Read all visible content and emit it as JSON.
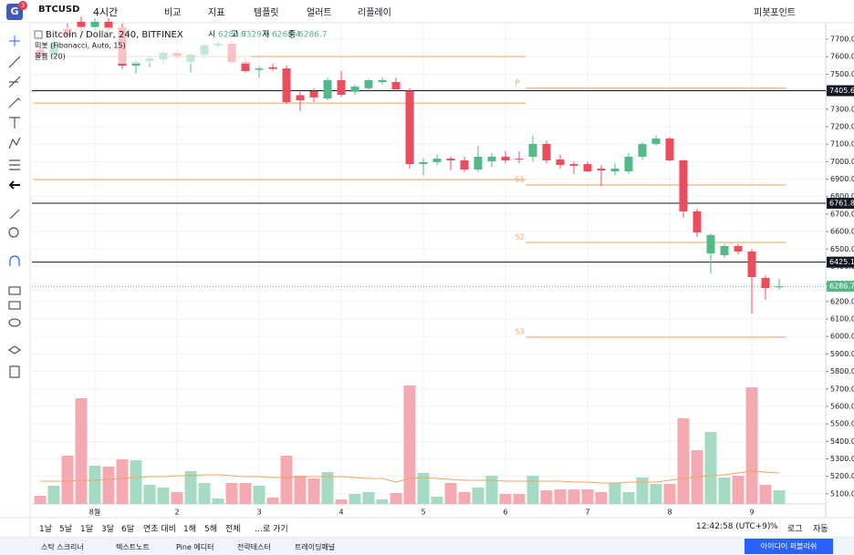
{
  "toolbar": {
    "badge": "3",
    "symbol": "BTCUSD",
    "interval": "4시간",
    "items": [
      "비교",
      "지표",
      "템플릿",
      "얼러트",
      "리플레이"
    ],
    "pivot": "피봇포인트"
  },
  "chart_data": {
    "type": "candlestick",
    "title": "Bitcoin / Dollar, 240, BITFINEX",
    "ohlc_labels": [
      "시",
      "고",
      "저",
      "종"
    ],
    "indicator": "피봇 (Fibonacci, Auto, 15)",
    "categories": [
      null,
      null,
      null,
      null,
      "8월",
      null,
      null,
      null,
      null,
      null,
      "2",
      null,
      null,
      null,
      null,
      null,
      "3",
      null,
      null,
      null,
      null,
      null,
      "4",
      null,
      null,
      null,
      null,
      null,
      "5",
      null,
      null,
      null,
      null,
      null,
      "6",
      null,
      null,
      null,
      null,
      null,
      "7",
      null,
      null,
      null,
      null,
      null,
      "8",
      null,
      null,
      null,
      null,
      null,
      "9",
      null,
      null
    ],
    "open": [
      7640,
      7610,
      7760,
      7800,
      7770,
      7800,
      7768,
      7549,
      7575,
      7585,
      7620,
      7570,
      7611,
      7664,
      7674,
      7570,
      7525,
      7540,
      7533,
      7380,
      7403,
      7361,
      7466,
      7400,
      7420,
      7455,
      7455,
      7405,
      6986,
      6997,
      7017,
      7007,
      6955,
      7002,
      7028,
      7017,
      7028,
      7101,
      7012,
      6986,
      6986,
      6960,
      6944,
      6944,
      7028,
      7101,
      7132,
      7007,
      6715,
      6475,
      6465,
      6517,
      6486,
      6335,
      6280.7
    ],
    "high": [
      7680,
      7700,
      7790,
      7830,
      7820,
      7820,
      7790,
      7580,
      7600,
      7640,
      7640,
      7620,
      7680,
      7690,
      7690,
      7590,
      7545,
      7560,
      7550,
      7400,
      7420,
      7480,
      7520,
      7440,
      7470,
      7480,
      7480,
      7420,
      7020,
      7040,
      7030,
      7030,
      7090,
      7050,
      7060,
      7060,
      7150,
      7120,
      7040,
      7000,
      7000,
      6980,
      6990,
      7050,
      7110,
      7150,
      7140,
      7010,
      6730,
      6590,
      6530,
      6530,
      6500,
      6350,
      6329.9
    ],
    "low": [
      7600,
      7590,
      7700,
      7720,
      7740,
      7740,
      7530,
      7505,
      7540,
      7560,
      7590,
      7510,
      7590,
      7650,
      7560,
      7510,
      7480,
      7520,
      7330,
      7290,
      7340,
      7350,
      7370,
      7380,
      7400,
      7440,
      7400,
      6960,
      6920,
      6980,
      6950,
      6940,
      6940,
      6970,
      6990,
      6990,
      7000,
      6990,
      6960,
      6930,
      6940,
      6860,
      6920,
      6930,
      7010,
      7090,
      7000,
      6680,
      6570,
      6360,
      6450,
      6470,
      6130,
      6210,
      6268.4
    ],
    "close": [
      7610,
      7680,
      7720,
      7770,
      7800,
      7760,
      7549,
      7570,
      7590,
      7622,
      7605,
      7611,
      7664,
      7674,
      7570,
      7518,
      7533,
      7530,
      7340,
      7351,
      7367,
      7466,
      7382,
      7429,
      7466,
      7466,
      7413,
      6986,
      6997,
      7017,
      7007,
      6955,
      7028,
      7028,
      7007,
      7012,
      7101,
      7007,
      6981,
      6976,
      6944,
      6950,
      6960,
      7028,
      7101,
      7132,
      7007,
      6715,
      6595,
      6580,
      6517,
      6486,
      6340,
      6277,
      6286.7
    ],
    "up_color": "#53b987",
    "down_color": "#eb4d5c",
    "ylim": [
      5042,
      7794
    ],
    "yticks": [
      {
        "value": 5100,
        "label": "5100.0"
      },
      {
        "value": 5200,
        "label": "5200.0"
      },
      {
        "value": 5300,
        "label": "5300.0"
      },
      {
        "value": 5400,
        "label": "5400.0"
      },
      {
        "value": 5500,
        "label": "5500.0"
      },
      {
        "value": 5600,
        "label": "5600.0"
      },
      {
        "value": 5700,
        "label": "5700.0"
      },
      {
        "value": 5800,
        "label": "5800.0"
      },
      {
        "value": 5900,
        "label": "5900.0"
      },
      {
        "value": 6000,
        "label": "6000.0"
      },
      {
        "value": 6100,
        "label": "6100.0"
      },
      {
        "value": 6200,
        "label": "6200.0"
      },
      {
        "value": 6300,
        "label": "6300.0"
      },
      {
        "value": 6400,
        "label": "6400.0"
      },
      {
        "value": 6500,
        "label": "6500.0"
      },
      {
        "value": 6600,
        "label": "6600.0"
      },
      {
        "value": 6700,
        "label": "6700.0"
      },
      {
        "value": 6800,
        "label": "6800.0"
      },
      {
        "value": 6900,
        "label": "6900.0"
      },
      {
        "value": 7000,
        "label": "7000.0"
      },
      {
        "value": 7100,
        "label": "7100.0"
      },
      {
        "value": 7200,
        "label": "7200.0"
      },
      {
        "value": 7300,
        "label": "7300.0"
      },
      {
        "value": 7400,
        "label": "7400.0"
      },
      {
        "value": 7500,
        "label": "7500.0"
      },
      {
        "value": 7600,
        "label": "7600.0"
      },
      {
        "value": 7700,
        "label": "7700.0"
      }
    ],
    "grid": true,
    "price_lines": [
      {
        "value": 7405.6,
        "color": "#131722",
        "style": "solid"
      },
      {
        "value": 6761.8,
        "color": "#131722",
        "style": "solid"
      },
      {
        "value": 6425.1,
        "color": "#131722",
        "style": "solid"
      },
      {
        "value": 6286.7,
        "color": "#53b987",
        "style": "dotted"
      }
    ],
    "pivot_color": "#f0a060",
    "pivots": [
      {
        "from": 0,
        "to": 36,
        "levels": [
          {
            "value": 7601
          },
          {
            "value": 7335
          },
          {
            "value": 6897
          }
        ]
      },
      {
        "from": 36,
        "to": 55,
        "levels": [
          {
            "label": "P",
            "value": 7420
          },
          {
            "label": "S1",
            "value": 6866
          },
          {
            "label": "S2",
            "value": 6538
          },
          {
            "label": "S3",
            "value": 5996
          }
        ]
      }
    ],
    "volume": {
      "name": "볼륨 (20)",
      "up_color": "#a6dbc3",
      "down_color": "#f5a9b1",
      "ma_color": "#f7a35c",
      "ylim": [
        0,
        140
      ],
      "values": [
        9,
        20,
        53,
        116,
        42,
        41,
        49,
        48,
        21,
        18,
        13,
        36,
        23,
        6,
        23,
        23,
        20,
        7,
        53,
        31,
        28,
        35,
        5,
        11,
        13,
        5,
        12,
        130,
        34,
        8,
        23,
        13,
        18,
        31,
        11,
        11,
        31,
        15,
        16,
        16,
        16,
        13,
        23,
        13,
        29,
        22,
        22,
        94,
        59,
        79,
        29,
        31,
        128,
        21,
        15
      ],
      "ma": [
        25,
        25,
        25,
        26,
        26,
        27,
        28,
        29,
        30,
        30,
        31,
        31,
        32,
        32,
        31,
        30,
        30,
        29,
        29,
        30,
        30,
        30,
        30,
        29,
        28,
        28,
        24,
        28,
        29,
        28,
        27,
        26,
        26,
        26,
        25,
        25,
        25,
        25,
        25,
        24,
        24,
        23,
        23,
        24,
        24,
        24,
        26,
        28,
        30,
        31,
        32,
        34,
        36,
        35,
        34
      ]
    }
  },
  "range_bar": {
    "items": [
      "1날",
      "5날",
      "1달",
      "3달",
      "6달",
      "연초 대비",
      "1해",
      "5해",
      "전체",
      "…로 가기"
    ],
    "clock": "12:42:58 (UTC+9)",
    "options": [
      "%",
      "로그",
      "자동"
    ]
  },
  "footer": {
    "tabs": [
      "스탁 스크리너",
      "텍스트노트",
      "Pine 에디터",
      "전략테스터",
      "트레이딩패널"
    ],
    "publish": "아이디어 퍼블리쉬"
  }
}
